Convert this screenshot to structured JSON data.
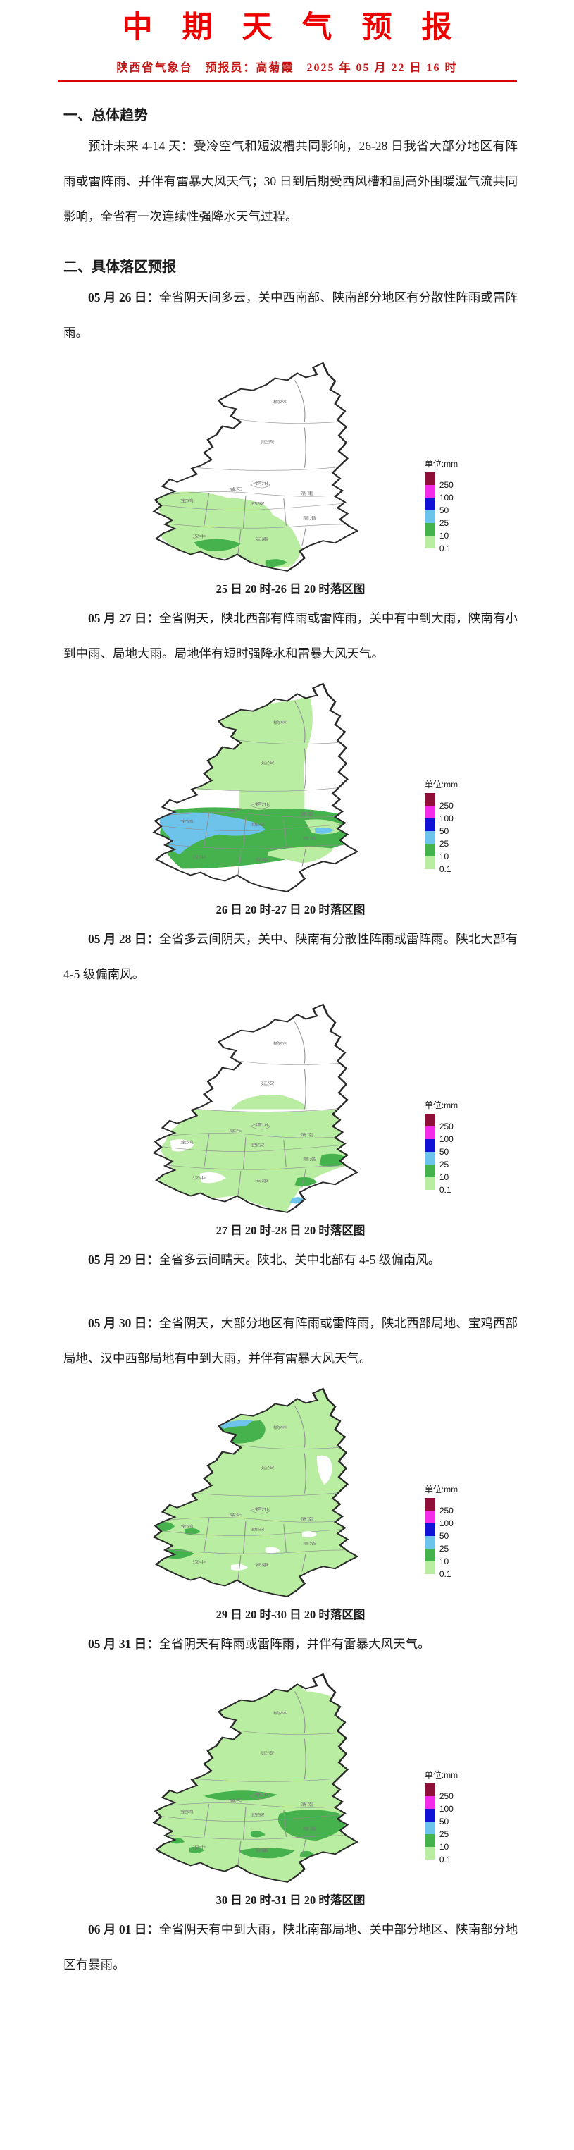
{
  "page": {
    "title": "中期天气预报",
    "byline": "陕西省气象台　预报员：高菊霞　2025 年 05 月 22 日 16 时"
  },
  "sections": {
    "overall_heading": "一、总体趋势",
    "overall_text": "预计未来 4-14 天：受冷空气和短波槽共同影响，26-28 日我省大部分地区有阵雨或雷阵雨、并伴有雷暴大风天气；30 日到后期受西风槽和副高外围暖湿气流共同影响，全省有一次连续性强降水天气过程。",
    "detail_heading": "二、具体落区预报"
  },
  "forecasts": [
    {
      "date": "05 月 26 日：",
      "text": "全省阴天间多云，关中西南部、陕南部分地区有分散性阵雨或雷阵雨。"
    },
    {
      "date": "05 月 27 日：",
      "text": "全省阴天，陕北西部有阵雨或雷阵雨，关中有中到大雨，陕南有小到中雨、局地大雨。局地伴有短时强降水和雷暴大风天气。"
    },
    {
      "date": "05 月 28 日：",
      "text": "全省多云间阴天，关中、陕南有分散性阵雨或雷阵雨。陕北大部有 4-5 级偏南风。"
    },
    {
      "date": "05 月 29 日：",
      "text": "全省多云间晴天。陕北、关中北部有 4-5 级偏南风。"
    },
    {
      "date": "05 月 30 日：",
      "text": "全省阴天，大部分地区有阵雨或雷阵雨，陕北西部局地、宝鸡西部局地、汉中西部局地有中到大雨，并伴有雷暴大风天气。"
    },
    {
      "date": "05 月 31 日：",
      "text": "全省阴天有阵雨或雷阵雨，并伴有雷暴大风天气。"
    },
    {
      "date": "06 月 01 日：",
      "text": "全省阴天有中到大雨，陕北南部局地、关中部分地区、陕南部分地区有暴雨。"
    }
  ],
  "maps": [
    {
      "caption": "25 日 20 时-26 日 20 时落区图"
    },
    {
      "caption": "26 日 20 时-27 日 20 时落区图"
    },
    {
      "caption": "27 日 20 时-28 日 20 时落区图"
    },
    {
      "caption": "29 日 20 时-30 日 20 时落区图"
    },
    {
      "caption": "30 日 20 时-31 日 20 时落区图"
    }
  ],
  "legend": {
    "unit_label": "单位:mm",
    "ticks": [
      "250",
      "100",
      "50",
      "25",
      "10",
      "0.1"
    ],
    "colors": [
      "#8e1038",
      "#f22ce8",
      "#1212d6",
      "#6ec3ea",
      "#46b24e",
      "#b9eda1"
    ]
  },
  "map_city_labels": [
    "榆林",
    "延安",
    "铜川",
    "渭南",
    "咸阳",
    "宝鸡",
    "西安",
    "商洛",
    "安康",
    "汉中"
  ]
}
